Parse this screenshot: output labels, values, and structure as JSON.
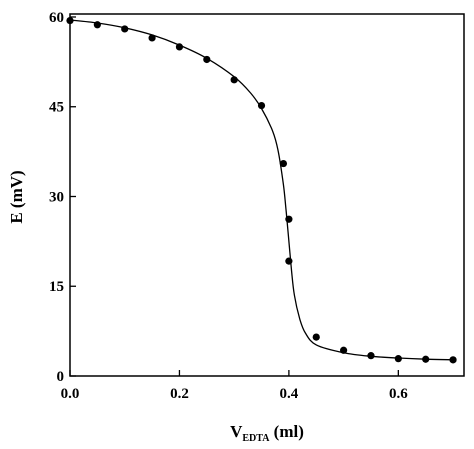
{
  "chart_data": {
    "type": "scatter",
    "title": "",
    "xlabel": {
      "main": "V",
      "subscript": "EDTA",
      "unit": " (ml)"
    },
    "ylabel": "E (mV)",
    "xlim": [
      0.0,
      0.72
    ],
    "ylim": [
      0,
      60.5
    ],
    "xticks": [
      0.0,
      0.2,
      0.4,
      0.6
    ],
    "xtick_labels": [
      "0.0",
      "0.2",
      "0.4",
      "0.6"
    ],
    "yticks": [
      0,
      15,
      30,
      45,
      60
    ],
    "ytick_labels": [
      "0",
      "15",
      "30",
      "45",
      "60"
    ],
    "grid": false,
    "legend": "none",
    "colors": {
      "points": "#000000",
      "curve": "#000000",
      "axes": "#000000"
    },
    "series": [
      {
        "name": "",
        "style": "markers",
        "x": [
          0.0,
          0.05,
          0.1,
          0.15,
          0.2,
          0.25,
          0.3,
          0.35,
          0.39,
          0.4,
          0.4,
          0.45,
          0.5,
          0.55,
          0.6,
          0.65,
          0.7
        ],
        "y": [
          59.4,
          58.7,
          58.0,
          56.5,
          55.0,
          52.9,
          49.5,
          45.2,
          35.5,
          26.2,
          19.2,
          6.5,
          4.3,
          3.4,
          2.9,
          2.8,
          2.7
        ]
      },
      {
        "name": "",
        "style": "line",
        "x": [
          0.0,
          0.05,
          0.1,
          0.15,
          0.2,
          0.25,
          0.3,
          0.33,
          0.35,
          0.37,
          0.38,
          0.39,
          0.395,
          0.4,
          0.405,
          0.41,
          0.42,
          0.43,
          0.45,
          0.5,
          0.55,
          0.6,
          0.65,
          0.7
        ],
        "y": [
          59.5,
          59.0,
          58.2,
          57.0,
          55.3,
          53.1,
          50.0,
          47.3,
          44.7,
          41.0,
          37.8,
          32.0,
          27.5,
          22.5,
          17.5,
          13.5,
          9.5,
          7.2,
          5.2,
          3.9,
          3.3,
          3.0,
          2.8,
          2.7
        ]
      }
    ]
  }
}
